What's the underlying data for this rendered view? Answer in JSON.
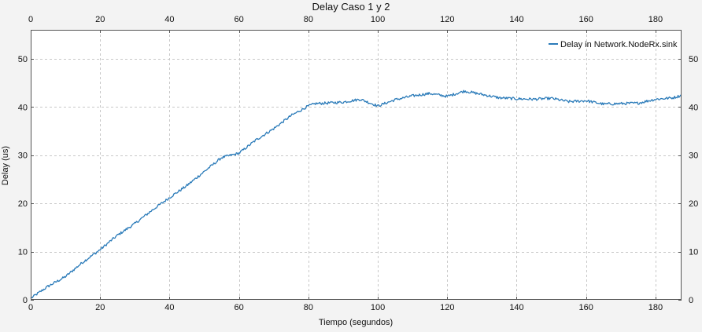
{
  "chart_data": {
    "type": "line",
    "title": "Delay Caso 1 y 2",
    "xlabel": "Tiempo (segundos)",
    "ylabel": "Delay (us)",
    "xlim": [
      0,
      187.5
    ],
    "ylim": [
      0,
      56
    ],
    "x_ticks": [
      0,
      20,
      40,
      60,
      80,
      100,
      120,
      140,
      160,
      180
    ],
    "y_ticks": [
      0,
      10,
      20,
      30,
      40,
      50
    ],
    "grid": true,
    "legend_position": "top-right",
    "series": [
      {
        "name": "Delay in Network.NodeRx.sink",
        "color": "#2b7bb9",
        "x": [
          0,
          5,
          10,
          15,
          20,
          25,
          30,
          35,
          40,
          45,
          50,
          55,
          60,
          65,
          70,
          75,
          80,
          82,
          85,
          90,
          95,
          100,
          105,
          110,
          115,
          120,
          125,
          130,
          135,
          140,
          145,
          150,
          155,
          160,
          165,
          170,
          175,
          180,
          185,
          187.5
        ],
        "y": [
          0.3,
          2.8,
          4.8,
          7.8,
          10.4,
          13.4,
          15.8,
          18.6,
          21.2,
          23.7,
          26.6,
          29.5,
          30.4,
          33.2,
          35.5,
          38.2,
          40.2,
          40.7,
          40.8,
          41.0,
          41.6,
          40.2,
          41.5,
          42.3,
          42.8,
          42.2,
          43.3,
          42.6,
          41.9,
          41.7,
          41.6,
          41.8,
          41.1,
          41.3,
          40.6,
          40.7,
          40.8,
          41.6,
          41.9,
          42.4
        ]
      }
    ]
  }
}
